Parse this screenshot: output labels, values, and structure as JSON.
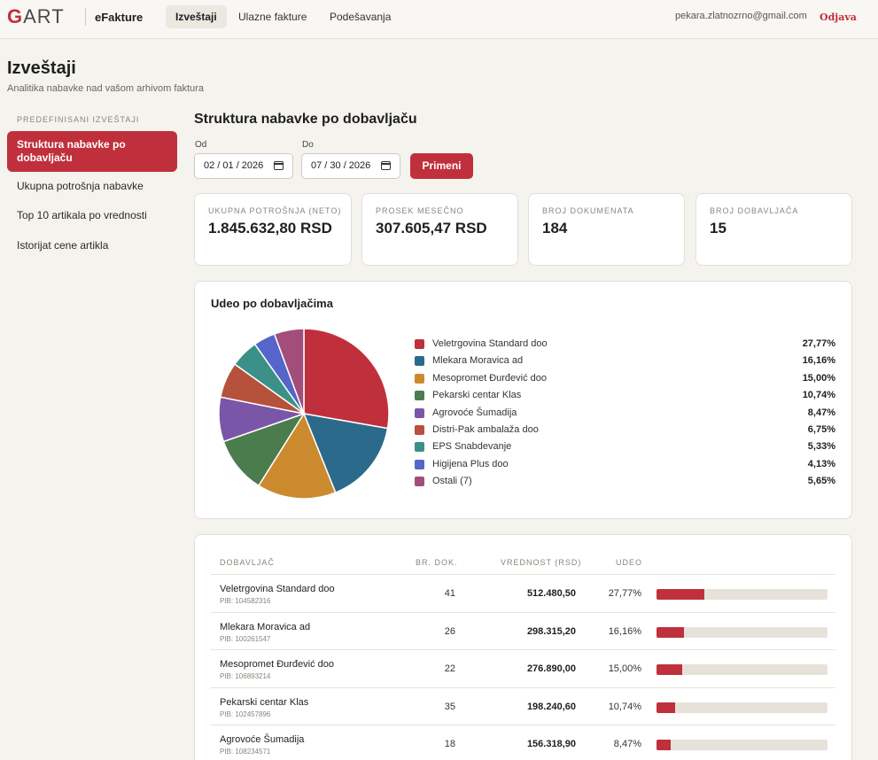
{
  "header": {
    "logo_letter": "G",
    "logo_rest": "ART",
    "app_name": "eFakture",
    "nav": [
      "Izveštaji",
      "Ulazne fakture",
      "Podešavanja"
    ],
    "email": "pekara.zlatnozrno@gmail.com",
    "logout": "Odjava"
  },
  "page": {
    "title": "Izveštaji",
    "subtitle": "Analitika nabavke nad vašom arhivom faktura"
  },
  "sidebar": {
    "heading": "PREDEFINISANI IZVEŠTAJI",
    "items": [
      {
        "label": "Struktura nabavke po dobavljaču",
        "active": true
      },
      {
        "label": "Ukupna potrošnja nabavke",
        "active": false
      },
      {
        "label": "Top 10 artikala po vrednosti",
        "active": false
      },
      {
        "label": "Istorijat cene artikla",
        "active": false
      }
    ]
  },
  "report": {
    "title": "Struktura nabavke po dobavljaču",
    "from_label": "Od",
    "from_value": "02 / 01 / 2026",
    "to_label": "Do",
    "to_value": "07 / 30 / 2026",
    "apply_label": "Primeni"
  },
  "kpis": [
    {
      "label": "UKUPNA POTROŠNJA (NETO)",
      "value": "1.845.632,80 RSD"
    },
    {
      "label": "PROSEK MESEČNO",
      "value": "307.605,47 RSD"
    },
    {
      "label": "BROJ DOKUMENATA",
      "value": "184"
    },
    {
      "label": "BROJ DOBAVLJAČA",
      "value": "15"
    }
  ],
  "share_card": {
    "title": "Udeo po dobavljačima"
  },
  "chart_data": {
    "type": "pie",
    "title": "Udeo po dobavljačima",
    "slices": [
      {
        "label": "Veletrgovina Standard doo",
        "value": 27.77,
        "pct": "27,77%",
        "color": "#c0303c"
      },
      {
        "label": "Mlekara Moravica ad",
        "value": 16.16,
        "pct": "16,16%",
        "color": "#2b6a8a"
      },
      {
        "label": "Mesopromet Đurđević doo",
        "value": 15.0,
        "pct": "15,00%",
        "color": "#cc8a2e"
      },
      {
        "label": "Pekarski centar Klas",
        "value": 10.74,
        "pct": "10,74%",
        "color": "#4a7c4e"
      },
      {
        "label": "Agrovoće Šumadija",
        "value": 8.47,
        "pct": "8,47%",
        "color": "#7b56a8"
      },
      {
        "label": "Distri-Pak ambalaža doo",
        "value": 6.75,
        "pct": "6,75%",
        "color": "#b6513b"
      },
      {
        "label": "EPS Snabdevanje",
        "value": 5.33,
        "pct": "5,33%",
        "color": "#3b9187"
      },
      {
        "label": "Higijena Plus doo",
        "value": 4.13,
        "pct": "4,13%",
        "color": "#5565c9"
      },
      {
        "label": "Ostali (7)",
        "value": 5.65,
        "pct": "5,65%",
        "color": "#a34e7a"
      }
    ]
  },
  "table": {
    "headers": [
      "DOBAVLJAČ",
      "BR. DOK.",
      "VREDNOST (RSD)",
      "UDEO"
    ],
    "rows": [
      {
        "name": "Veletrgovina Standard doo",
        "pib": "PIB: 104582316",
        "docs": "41",
        "value": "512.480,50",
        "share": "27,77%",
        "share_num": 27.77
      },
      {
        "name": "Mlekara Moravica ad",
        "pib": "PIB: 100261547",
        "docs": "26",
        "value": "298.315,20",
        "share": "16,16%",
        "share_num": 16.16
      },
      {
        "name": "Mesopromet Đurđević doo",
        "pib": "PIB: 106893214",
        "docs": "22",
        "value": "276.890,00",
        "share": "15,00%",
        "share_num": 15.0
      },
      {
        "name": "Pekarski centar Klas",
        "pib": "PIB: 102457896",
        "docs": "35",
        "value": "198.240,60",
        "share": "10,74%",
        "share_num": 10.74
      },
      {
        "name": "Agrovoće Šumadija",
        "pib": "PIB: 108234571",
        "docs": "18",
        "value": "156.318,90",
        "share": "8,47%",
        "share_num": 8.47
      }
    ]
  }
}
